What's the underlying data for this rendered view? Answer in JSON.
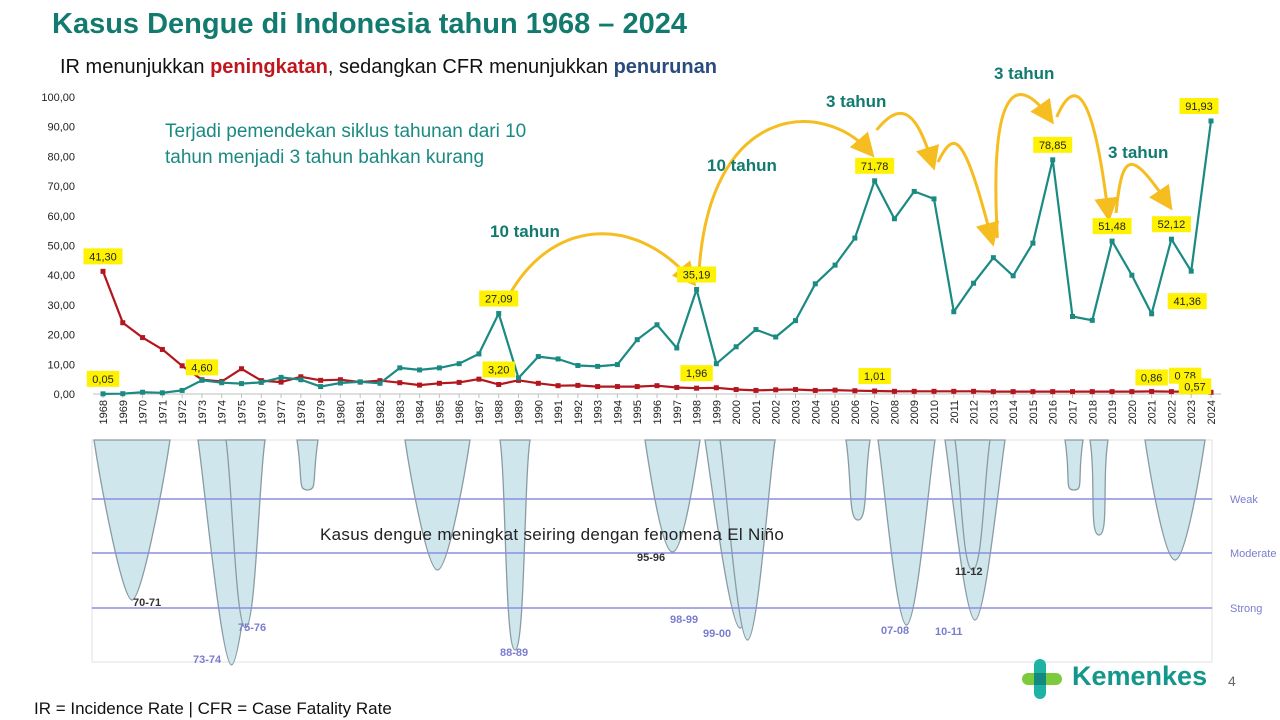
{
  "title": "Kasus Dengue di Indonesia tahun 1968 – 2024",
  "subtitle": {
    "part1": "IR menunjukkan ",
    "highlight_red": "peningkatan",
    "part2": ", sedangkan CFR menunjukkan ",
    "highlight_blue": "penurunan"
  },
  "colors": {
    "title": "#127a6e",
    "ir_line": "#1a8a82",
    "cfr_line": "#b3161c",
    "arrow": "#f5bd1f",
    "label_bg": "#fff200",
    "enso_fill": "#cfe6ec",
    "enso_line": "#8a9ba3",
    "threshold": "#8c8ee0"
  },
  "chart_data": [
    {
      "type": "line",
      "title": "",
      "xlabel": "",
      "ylabel": "",
      "ylim": [
        0,
        100
      ],
      "yticks": [
        "0,00",
        "10,00",
        "20,00",
        "30,00",
        "40,00",
        "50,00",
        "60,00",
        "70,00",
        "80,00",
        "90,00",
        "100,00"
      ],
      "grid": false,
      "categories": [
        "1968",
        "1969",
        "1970",
        "1971",
        "1972",
        "1973",
        "1974",
        "1975",
        "1976",
        "1977",
        "1978",
        "1979",
        "1980",
        "1981",
        "1982",
        "1983",
        "1984",
        "1985",
        "1986",
        "1987",
        "1988",
        "1989",
        "1990",
        "1991",
        "1992",
        "1993",
        "1994",
        "1995",
        "1996",
        "1997",
        "1998",
        "1999",
        "2000",
        "2001",
        "2002",
        "2003",
        "2004",
        "2005",
        "2006",
        "2007",
        "2008",
        "2009",
        "2010",
        "2011",
        "2012",
        "2013",
        "2014",
        "2015",
        "2016",
        "2017",
        "2018",
        "2019",
        "2020",
        "2021",
        "2022",
        "2023",
        "2024"
      ],
      "series": [
        {
          "name": "IR",
          "values": [
            0.05,
            0.1,
            0.6,
            0.4,
            1.2,
            4.6,
            3.8,
            3.5,
            3.9,
            5.6,
            4.8,
            2.5,
            3.7,
            4.1,
            3.6,
            8.8,
            8.1,
            8.8,
            10.2,
            13.5,
            27.09,
            5.4,
            12.6,
            11.8,
            9.6,
            9.3,
            9.9,
            18.3,
            23.3,
            15.5,
            35.19,
            10.2,
            15.9,
            21.7,
            19.2,
            24.7,
            37.1,
            43.4,
            52.5,
            71.78,
            59.0,
            68.2,
            65.7,
            27.7,
            37.3,
            45.9,
            39.8,
            50.8,
            78.85,
            26.1,
            24.8,
            51.48,
            40.0,
            27.0,
            52.12,
            41.36,
            91.93
          ]
        },
        {
          "name": "CFR",
          "values": [
            41.3,
            24.0,
            19.0,
            15.0,
            9.5,
            4.8,
            4.2,
            8.5,
            4.5,
            4.0,
            5.8,
            4.6,
            4.8,
            4.0,
            4.5,
            3.8,
            3.0,
            3.6,
            3.9,
            5.0,
            3.2,
            4.6,
            3.6,
            2.8,
            2.9,
            2.5,
            2.5,
            2.5,
            2.8,
            2.2,
            1.96,
            2.1,
            1.5,
            1.2,
            1.4,
            1.5,
            1.2,
            1.3,
            1.1,
            1.01,
            0.9,
            0.9,
            0.9,
            0.9,
            0.9,
            0.8,
            0.8,
            0.8,
            0.8,
            0.8,
            0.8,
            0.8,
            0.8,
            0.86,
            0.8,
            0.78,
            0.57
          ]
        }
      ],
      "data_labels": [
        {
          "series": "CFR",
          "category": "1968",
          "text": "41,30"
        },
        {
          "series": "IR",
          "category": "1968",
          "text": "0,05"
        },
        {
          "series": "IR",
          "category": "1973",
          "text": "4,60"
        },
        {
          "series": "IR",
          "category": "1988",
          "text": "27,09"
        },
        {
          "series": "CFR",
          "category": "1988",
          "text": "3,20"
        },
        {
          "series": "IR",
          "category": "1998",
          "text": "35,19"
        },
        {
          "series": "CFR",
          "category": "1998",
          "text": "1,96"
        },
        {
          "series": "IR",
          "category": "2007",
          "text": "71,78"
        },
        {
          "series": "CFR",
          "category": "2007",
          "text": "1,01"
        },
        {
          "series": "IR",
          "category": "2016",
          "text": "78,85"
        },
        {
          "series": "IR",
          "category": "2019",
          "text": "51,48"
        },
        {
          "series": "IR",
          "category": "2022",
          "text": "52,12"
        },
        {
          "series": "CFR",
          "category": "2021",
          "text": "0,86"
        },
        {
          "series": "IR",
          "category": "2023",
          "text": "41,36"
        },
        {
          "series": "CFR",
          "category": "2023",
          "text": "0,78"
        },
        {
          "series": "IR",
          "category": "2024",
          "text": "91,93"
        },
        {
          "series": "CFR",
          "category": "2024",
          "text": "0,57"
        }
      ],
      "annotations": {
        "note": "Terjadi pemendekan siklus tahunan dari 10 tahun menjadi 3 tahun bahkan kurang",
        "cycle_labels": [
          "10 tahun",
          "10 tahun",
          "3 tahun",
          "3 tahun",
          "3 tahun"
        ]
      }
    },
    {
      "type": "area",
      "title": "",
      "thresholds": [
        "Weak",
        "Moderate",
        "Strong"
      ],
      "events": [
        "70-71",
        "73-74",
        "75-76",
        "88-89",
        "95-96",
        "98-99",
        "99-00",
        "07-08",
        "10-11",
        "11-12"
      ],
      "caption": "Kasus dengue meningkat seiring dengan fenomena El Niño"
    }
  ],
  "footnote": "IR = Incidence Rate | CFR = Case Fatality Rate",
  "page_number": "4",
  "logo": {
    "text": "Kemenkes",
    "icon": "kemenkes-logo-icon"
  }
}
